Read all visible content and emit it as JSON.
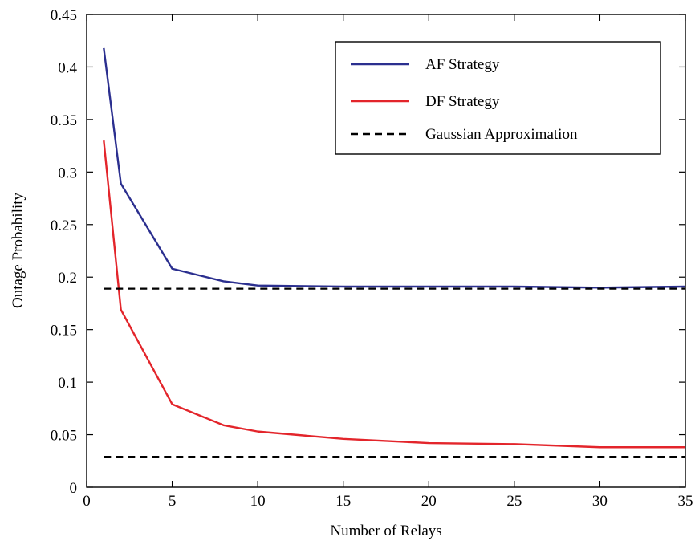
{
  "chart_data": {
    "type": "line",
    "xlabel": "Number of Relays",
    "ylabel": "Outage Probability",
    "xlim": [
      0,
      35
    ],
    "ylim": [
      0,
      0.45
    ],
    "xticks": [
      0,
      5,
      10,
      15,
      20,
      25,
      30,
      35
    ],
    "xtick_labels": [
      "0",
      "5",
      "10",
      "15",
      "20",
      "25",
      "30",
      "35"
    ],
    "yticks": [
      0,
      0.05,
      0.1,
      0.15,
      0.2,
      0.25,
      0.3,
      0.35,
      0.4,
      0.45
    ],
    "ytick_labels": [
      "0",
      "0.05",
      "0.1",
      "0.15",
      "0.2",
      "0.25",
      "0.3",
      "0.35",
      "0.4",
      "0.45"
    ],
    "grid": false,
    "legend_position": "top-right",
    "series": [
      {
        "name": "AF Strategy",
        "color": "#2b2f8f",
        "style": "solid",
        "x": [
          1,
          2,
          5,
          8,
          10,
          15,
          20,
          25,
          30,
          35
        ],
        "y": [
          0.418,
          0.289,
          0.208,
          0.196,
          0.192,
          0.191,
          0.191,
          0.191,
          0.19,
          0.191
        ]
      },
      {
        "name": "DF Strategy",
        "color": "#e3252b",
        "style": "solid",
        "x": [
          1,
          2,
          5,
          8,
          10,
          15,
          20,
          25,
          30,
          35
        ],
        "y": [
          0.33,
          0.169,
          0.079,
          0.059,
          0.053,
          0.046,
          0.042,
          0.041,
          0.038,
          0.038
        ]
      },
      {
        "name": "Gaussian Approximation",
        "color": "#000000",
        "style": "dashed",
        "x": [
          1,
          35
        ],
        "y": [
          0.189,
          0.189
        ]
      },
      {
        "name": "Gaussian Approximation",
        "color": "#000000",
        "style": "dashed",
        "x": [
          1,
          35
        ],
        "y": [
          0.029,
          0.029
        ]
      }
    ],
    "legend": [
      {
        "name": "AF Strategy",
        "color": "#2b2f8f",
        "style": "solid"
      },
      {
        "name": "DF Strategy",
        "color": "#e3252b",
        "style": "solid"
      },
      {
        "name": "Gaussian Approximation",
        "color": "#000000",
        "style": "dashed"
      }
    ]
  }
}
